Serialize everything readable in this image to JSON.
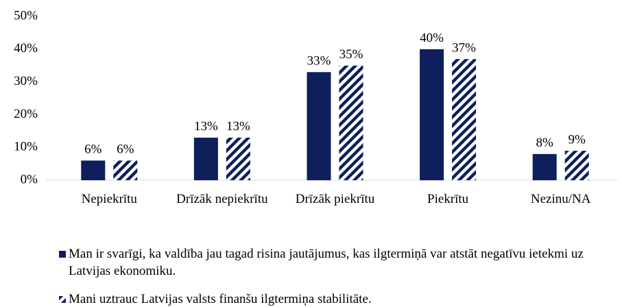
{
  "chart_data": {
    "type": "bar",
    "categories": [
      "Nepiekrītu",
      "Drīzāk nepiekrītu",
      "Drīzāk piekrītu",
      "Piekrītu",
      "Nezinu/NA"
    ],
    "series": [
      {
        "name": "Man ir svarīgi, ka valdība jau tagad risina jautājumus, kas ilgtermiņā var atstāt negatīvu ietekmi uz Latvijas ekonomiku.",
        "color": "#0e1f5b",
        "hatch": false,
        "values": [
          6,
          13,
          33,
          40,
          8
        ],
        "value_labels": [
          "6%",
          "13%",
          "33%",
          "40%",
          "8%"
        ]
      },
      {
        "name": "Mani uztrauc Latvijas valsts finanšu ilgtermiņa stabilitāte.",
        "color": "#0e1f5b",
        "hatch": true,
        "values": [
          6,
          13,
          35,
          37,
          9
        ],
        "value_labels": [
          "6%",
          "13%",
          "35%",
          "37%",
          "9%"
        ]
      }
    ],
    "ylim": [
      0,
      50
    ],
    "yticks": [
      {
        "value": 0,
        "label": "0%"
      },
      {
        "value": 10,
        "label": "10%"
      },
      {
        "value": 20,
        "label": "20%"
      },
      {
        "value": 30,
        "label": "30%"
      },
      {
        "value": 40,
        "label": "40%"
      },
      {
        "value": 50,
        "label": "50%"
      }
    ],
    "grid": false
  }
}
